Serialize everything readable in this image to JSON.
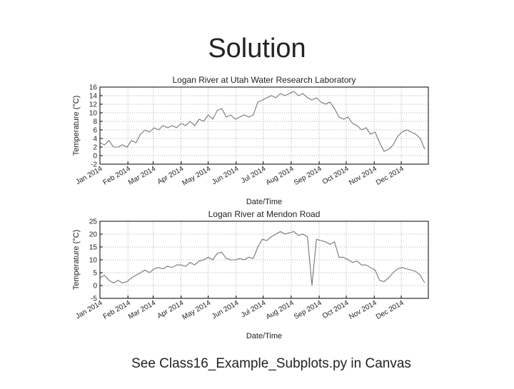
{
  "slide": {
    "title": "Solution",
    "footer": "See Class16_Example_Subplots.py in Canvas"
  },
  "chart_data": [
    {
      "type": "line",
      "title": "Logan River at Utah Water Research Laboratory",
      "xlabel": "Date/Time",
      "ylabel": "Temperature (°C)",
      "color": "#777777",
      "grid": true,
      "xlim": [
        0,
        364
      ],
      "ylim": [
        -2,
        16
      ],
      "yticks": [
        -2,
        0,
        2,
        4,
        6,
        8,
        10,
        12,
        14,
        16
      ],
      "xticks": [
        {
          "value": 0,
          "label": "Jan 2014"
        },
        {
          "value": 31,
          "label": "Feb 2014"
        },
        {
          "value": 59,
          "label": "Mar 2014"
        },
        {
          "value": 90,
          "label": "Apr 2014"
        },
        {
          "value": 120,
          "label": "May 2014"
        },
        {
          "value": 151,
          "label": "Jun 2014"
        },
        {
          "value": 181,
          "label": "Jul 2014"
        },
        {
          "value": 212,
          "label": "Aug 2014"
        },
        {
          "value": 243,
          "label": "Sep 2014"
        },
        {
          "value": 273,
          "label": "Oct 2014"
        },
        {
          "value": 304,
          "label": "Nov 2014"
        },
        {
          "value": 334,
          "label": "Dec 2014"
        }
      ],
      "x": [
        0,
        5,
        10,
        15,
        20,
        25,
        30,
        35,
        40,
        45,
        50,
        55,
        60,
        65,
        70,
        75,
        80,
        85,
        90,
        95,
        100,
        105,
        110,
        115,
        120,
        125,
        130,
        135,
        140,
        145,
        150,
        155,
        160,
        165,
        170,
        175,
        180,
        185,
        190,
        195,
        200,
        205,
        210,
        215,
        220,
        225,
        230,
        235,
        240,
        245,
        250,
        255,
        260,
        265,
        270,
        275,
        280,
        285,
        290,
        295,
        300,
        305,
        310,
        315,
        320,
        325,
        330,
        335,
        340,
        345,
        350,
        355,
        360
      ],
      "values": [
        3,
        2.5,
        3.5,
        2,
        2,
        2.5,
        2,
        3.5,
        3,
        5,
        6,
        5.5,
        6.5,
        6,
        7,
        6.5,
        7,
        6.5,
        7.5,
        7,
        8,
        7,
        8.5,
        8,
        9.5,
        8.5,
        10.5,
        11,
        9,
        9.5,
        8.5,
        9,
        9.5,
        9,
        9.5,
        12.5,
        13,
        13.5,
        14,
        13.5,
        14.5,
        14,
        14.5,
        15,
        14,
        14.5,
        13.5,
        13,
        13.5,
        12.5,
        12,
        12.5,
        11,
        9,
        8.5,
        9,
        7.5,
        7,
        6,
        6.5,
        5,
        5.5,
        3,
        1,
        1.5,
        2.5,
        4.5,
        5.5,
        6,
        5.5,
        5,
        4,
        1.5
      ]
    },
    {
      "type": "line",
      "title": "Logan River at Mendon Road",
      "xlabel": "Date/Time",
      "ylabel": "Temperature (°C)",
      "color": "#777777",
      "grid": true,
      "xlim": [
        0,
        364
      ],
      "ylim": [
        -5,
        25
      ],
      "yticks": [
        -5,
        0,
        5,
        10,
        15,
        20,
        25
      ],
      "xticks": [
        {
          "value": 0,
          "label": "Jan 2014"
        },
        {
          "value": 31,
          "label": "Feb 2014"
        },
        {
          "value": 59,
          "label": "Mar 2014"
        },
        {
          "value": 90,
          "label": "Apr 2014"
        },
        {
          "value": 120,
          "label": "May 2014"
        },
        {
          "value": 151,
          "label": "Jun 2014"
        },
        {
          "value": 181,
          "label": "Jul 2014"
        },
        {
          "value": 212,
          "label": "Aug 2014"
        },
        {
          "value": 243,
          "label": "Sep 2014"
        },
        {
          "value": 273,
          "label": "Oct 2014"
        },
        {
          "value": 304,
          "label": "Nov 2014"
        },
        {
          "value": 334,
          "label": "Dec 2014"
        }
      ],
      "x": [
        0,
        5,
        10,
        15,
        20,
        25,
        30,
        35,
        40,
        45,
        50,
        55,
        60,
        65,
        70,
        75,
        80,
        85,
        90,
        95,
        100,
        105,
        110,
        115,
        120,
        125,
        130,
        135,
        140,
        145,
        150,
        155,
        160,
        165,
        170,
        175,
        180,
        185,
        190,
        195,
        200,
        205,
        210,
        215,
        220,
        225,
        230,
        235,
        240,
        245,
        250,
        255,
        260,
        265,
        270,
        275,
        280,
        285,
        290,
        295,
        300,
        305,
        310,
        315,
        320,
        325,
        330,
        335,
        340,
        345,
        350,
        355,
        360
      ],
      "values": [
        3,
        4,
        2,
        1,
        2,
        1,
        1.5,
        3,
        4,
        5,
        6,
        5,
        6.5,
        7,
        6.5,
        7.5,
        7,
        8,
        8,
        7.5,
        9,
        8,
        9.5,
        10,
        11,
        10,
        12.5,
        13,
        10.5,
        10,
        10,
        10.5,
        10,
        11,
        10.5,
        15,
        18,
        17.5,
        19,
        20,
        21,
        20,
        20.5,
        21,
        19.5,
        20,
        19,
        0,
        18,
        17.5,
        17,
        16,
        17,
        11,
        11,
        10,
        9,
        9.5,
        8,
        8,
        7,
        6,
        2,
        1.5,
        3,
        5,
        6.5,
        7,
        6.5,
        6,
        5.5,
        4,
        1
      ]
    }
  ]
}
